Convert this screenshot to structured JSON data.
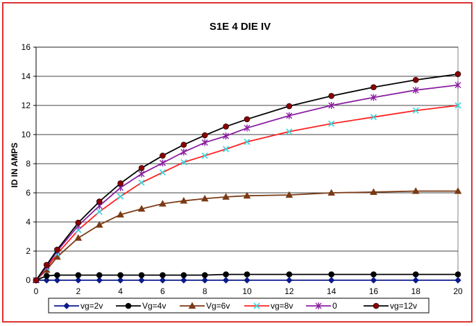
{
  "chart_data": {
    "type": "line",
    "title": "S1E 4 DIE  IV",
    "xlabel": "",
    "ylabel": "ID IN AMPS",
    "xlim": [
      0,
      20
    ],
    "ylim": [
      0,
      16
    ],
    "x_ticks": [
      0,
      2,
      4,
      6,
      8,
      10,
      12,
      14,
      16,
      18,
      20
    ],
    "y_ticks": [
      0,
      2,
      4,
      6,
      8,
      10,
      12,
      14,
      16
    ],
    "grid": "horizontal",
    "legend_position": "bottom",
    "series": [
      {
        "name": "vg=2v",
        "color": "#0a1a8c",
        "marker": "diamond",
        "x": [
          0,
          0.5,
          1,
          2,
          3,
          4,
          5,
          6,
          7,
          8,
          9,
          10,
          12,
          14,
          16,
          18,
          20
        ],
        "y": [
          0,
          0,
          0,
          0,
          0,
          0,
          0,
          0,
          0,
          0,
          0,
          0,
          0,
          0,
          0,
          0,
          0
        ]
      },
      {
        "name": "Vg=4v",
        "color": "#000000",
        "marker": "circle",
        "x": [
          0,
          0.5,
          1,
          2,
          3,
          4,
          5,
          6,
          7,
          8,
          9,
          10,
          12,
          14,
          16,
          18,
          20
        ],
        "y": [
          0,
          0.3,
          0.35,
          0.35,
          0.35,
          0.35,
          0.35,
          0.35,
          0.35,
          0.35,
          0.4,
          0.4,
          0.4,
          0.4,
          0.4,
          0.4,
          0.4
        ]
      },
      {
        "name": "Vg=6v",
        "color": "#7a3a14",
        "marker": "triangle",
        "x": [
          0,
          0.5,
          1,
          2,
          3,
          4,
          5,
          6,
          7,
          8,
          9,
          10,
          12,
          14,
          16,
          18,
          20
        ],
        "y": [
          0,
          0.7,
          1.6,
          2.9,
          3.8,
          4.5,
          4.9,
          5.25,
          5.45,
          5.6,
          5.72,
          5.8,
          5.85,
          6.0,
          6.05,
          6.12,
          6.12
        ]
      },
      {
        "name": "vg=8v",
        "color": "#33d6e0",
        "marker": "x",
        "line_color": "#ff2020",
        "x": [
          0,
          0.5,
          1,
          2,
          3,
          4,
          5,
          6,
          7,
          8,
          9,
          10,
          12,
          14,
          16,
          18,
          20
        ],
        "y": [
          0,
          0.85,
          1.8,
          3.45,
          4.7,
          5.75,
          6.7,
          7.4,
          8.1,
          8.55,
          9.0,
          9.5,
          10.2,
          10.75,
          11.2,
          11.65,
          12.0
        ]
      },
      {
        "name": "0",
        "color": "#8a1ea0",
        "marker": "star",
        "x": [
          0,
          0.5,
          1,
          2,
          3,
          4,
          5,
          6,
          7,
          8,
          9,
          10,
          12,
          14,
          16,
          18,
          20
        ],
        "y": [
          0,
          0.95,
          2.0,
          3.75,
          5.1,
          6.35,
          7.3,
          8.05,
          8.8,
          9.45,
          9.9,
          10.45,
          11.3,
          12.0,
          12.55,
          13.05,
          13.4
        ]
      },
      {
        "name": "vg=12v",
        "color": "#8b0000",
        "marker": "circle",
        "line_color": "#000000",
        "x": [
          0,
          0.5,
          1,
          2,
          3,
          4,
          5,
          6,
          7,
          8,
          9,
          10,
          12,
          14,
          16,
          18,
          20
        ],
        "y": [
          0,
          1.05,
          2.1,
          3.95,
          5.4,
          6.65,
          7.7,
          8.55,
          9.3,
          9.95,
          10.55,
          11.05,
          11.95,
          12.65,
          13.25,
          13.75,
          14.15
        ]
      }
    ]
  }
}
